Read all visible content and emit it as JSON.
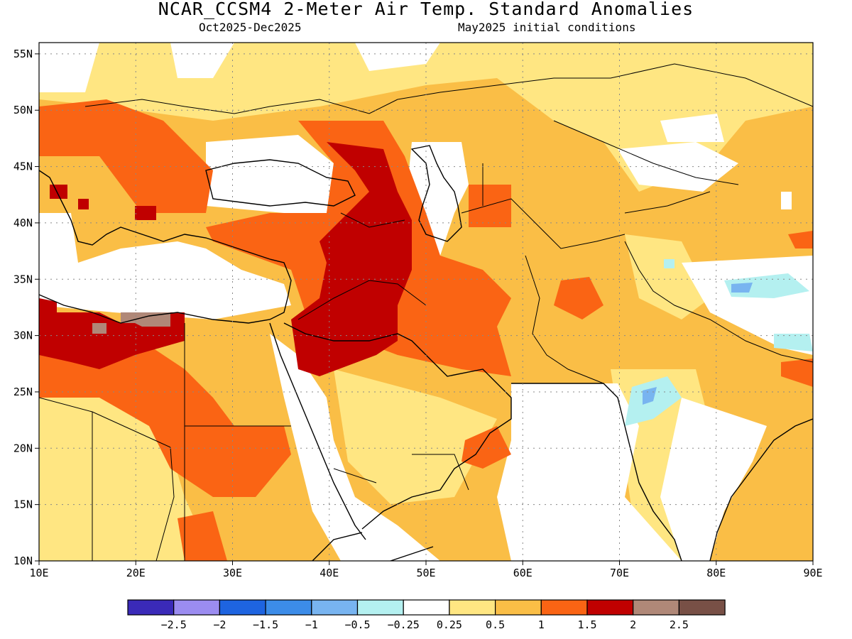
{
  "title": "NCAR_CCSM4 2-Meter Air Temp. Standard Anomalies",
  "subtitle_period": "Oct2025-Dec2025",
  "subtitle_init": "May2025 initial conditions",
  "map": {
    "lon_range": [
      10,
      90
    ],
    "lat_range": [
      10,
      56
    ],
    "lon_ticks": [
      "10E",
      "20E",
      "30E",
      "40E",
      "50E",
      "60E",
      "70E",
      "80E",
      "90E"
    ],
    "lat_ticks": [
      "10N",
      "15N",
      "20N",
      "25N",
      "30N",
      "35N",
      "40N",
      "45N",
      "50N",
      "55N"
    ],
    "grid": true
  },
  "colorbar": {
    "colors": [
      "#3a2ab8",
      "#9b8cf0",
      "#1e64e0",
      "#3c8ce8",
      "#78b4f0",
      "#b4f0f0",
      "#ffffff",
      "#ffe682",
      "#fabe46",
      "#fa6414",
      "#c00000",
      "#b08878",
      "#785046"
    ],
    "labels": [
      "-2.5",
      "-2",
      "-1.5",
      "-1",
      "-0.5",
      "-0.25",
      "0.25",
      "0.5",
      "1",
      "1.5",
      "2",
      "2.5"
    ]
  }
}
